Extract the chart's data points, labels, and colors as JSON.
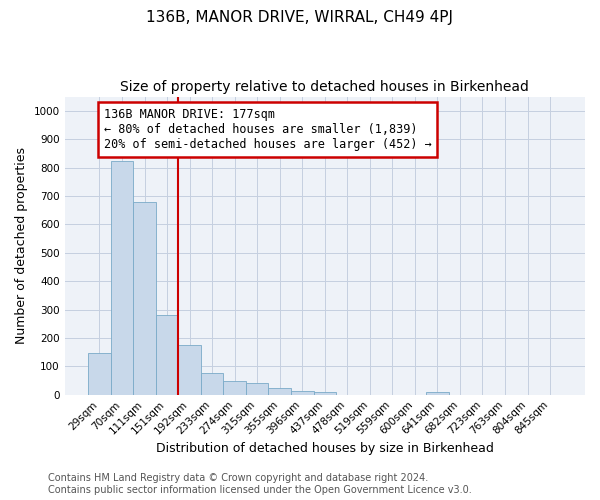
{
  "title": "136B, MANOR DRIVE, WIRRAL, CH49 4PJ",
  "subtitle": "Size of property relative to detached houses in Birkenhead",
  "xlabel": "Distribution of detached houses by size in Birkenhead",
  "ylabel": "Number of detached properties",
  "bar_labels": [
    "29sqm",
    "70sqm",
    "111sqm",
    "151sqm",
    "192sqm",
    "233sqm",
    "274sqm",
    "315sqm",
    "355sqm",
    "396sqm",
    "437sqm",
    "478sqm",
    "519sqm",
    "559sqm",
    "600sqm",
    "641sqm",
    "682sqm",
    "723sqm",
    "763sqm",
    "804sqm",
    "845sqm"
  ],
  "bar_values": [
    148,
    822,
    678,
    280,
    175,
    78,
    50,
    42,
    22,
    12,
    8,
    0,
    0,
    0,
    0,
    10,
    0,
    0,
    0,
    0,
    0
  ],
  "bar_color": "#c8d8ea",
  "bar_edge_color": "#7aaac8",
  "vline_color": "#cc0000",
  "annotation_text": "136B MANOR DRIVE: 177sqm\n← 80% of detached houses are smaller (1,839)\n20% of semi-detached houses are larger (452) →",
  "annotation_box_color": "#cc0000",
  "ylim": [
    0,
    1050
  ],
  "yticks": [
    0,
    100,
    200,
    300,
    400,
    500,
    600,
    700,
    800,
    900,
    1000
  ],
  "grid_color": "#c5cfe0",
  "background_color": "#eef2f8",
  "footer_text": "Contains HM Land Registry data © Crown copyright and database right 2024.\nContains public sector information licensed under the Open Government Licence v3.0.",
  "title_fontsize": 11,
  "subtitle_fontsize": 10,
  "xlabel_fontsize": 9,
  "ylabel_fontsize": 9,
  "tick_fontsize": 7.5,
  "annotation_fontsize": 8.5,
  "footer_fontsize": 7
}
